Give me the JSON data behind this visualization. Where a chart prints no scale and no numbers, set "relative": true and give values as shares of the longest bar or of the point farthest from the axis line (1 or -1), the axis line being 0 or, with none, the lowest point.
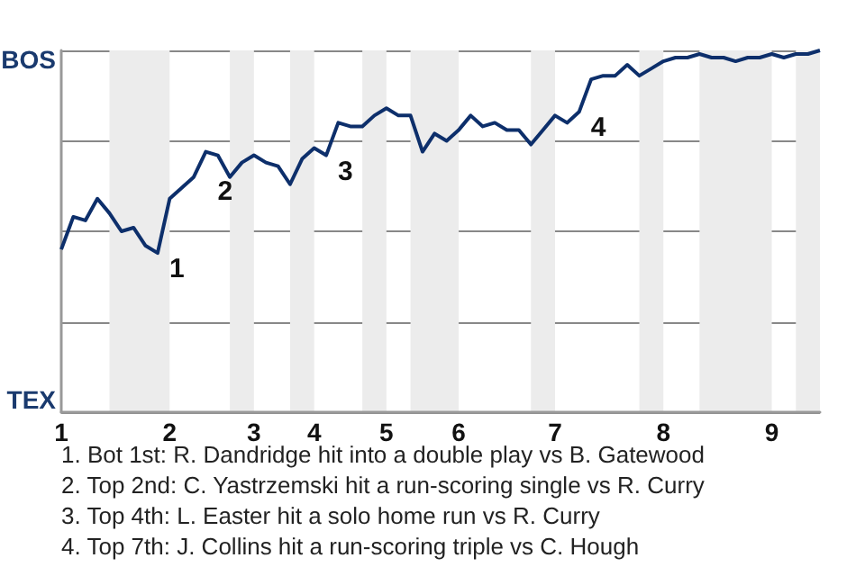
{
  "chart_data": {
    "type": "line",
    "relative": true,
    "categories": [
      "1",
      null,
      null,
      null,
      null,
      null,
      null,
      null,
      null,
      "2",
      null,
      null,
      null,
      null,
      null,
      null,
      "3",
      null,
      null,
      null,
      null,
      "4",
      null,
      null,
      null,
      null,
      null,
      "5",
      null,
      null,
      null,
      null,
      null,
      "6",
      null,
      null,
      null,
      null,
      null,
      null,
      null,
      "7",
      null,
      null,
      null,
      null,
      null,
      null,
      null,
      null,
      "8",
      null,
      null,
      null,
      null,
      null,
      null,
      null,
      null,
      "9",
      null,
      null,
      null,
      null
    ],
    "values": [
      0.45,
      0.54,
      0.53,
      0.59,
      0.55,
      0.5,
      0.51,
      0.46,
      0.44,
      0.59,
      0.62,
      0.65,
      0.72,
      0.71,
      0.65,
      0.69,
      0.71,
      0.69,
      0.68,
      0.63,
      0.7,
      0.73,
      0.71,
      0.8,
      0.79,
      0.79,
      0.82,
      0.84,
      0.82,
      0.82,
      0.72,
      0.77,
      0.75,
      0.78,
      0.82,
      0.79,
      0.8,
      0.78,
      0.78,
      0.74,
      0.78,
      0.82,
      0.8,
      0.83,
      0.92,
      0.93,
      0.93,
      0.96,
      0.93,
      0.95,
      0.97,
      0.98,
      0.98,
      0.99,
      0.98,
      0.98,
      0.97,
      0.98,
      0.98,
      0.99,
      0.98,
      0.99,
      0.99,
      1
    ],
    "color": "#0d2f6b",
    "marker": "none",
    "line_style": "solid",
    "grid": "y",
    "annotations": [
      "BOS",
      "TEX",
      "1",
      "2",
      "3",
      "4",
      "1. Bot 1st: R. Dandridge hit into a double play vs B. Gatewood",
      "2. Top 2nd: C. Yastrzemski hit a run-scoring single vs R. Curry",
      "3. Top 4th: L. Easter hit a solo home run vs R. Curry",
      "4. Top 7th: J. Collins hit a run-scoring triple vs C. Hough"
    ]
  }
}
